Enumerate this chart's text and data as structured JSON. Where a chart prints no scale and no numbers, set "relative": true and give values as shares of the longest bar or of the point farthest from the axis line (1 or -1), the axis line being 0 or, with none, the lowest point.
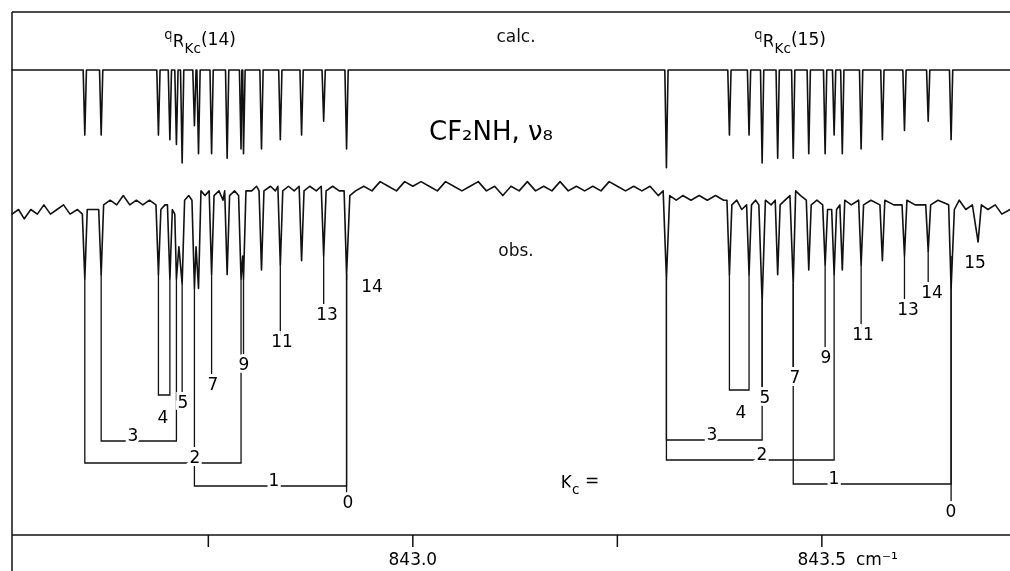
{
  "chart_data": {
    "type": "line",
    "relative": true,
    "title": "CF₂NH, ν₈",
    "xlabel": "cm⁻¹",
    "xlim": [
      842.51,
      843.73
    ],
    "xticks": [
      {
        "value": 842.75,
        "label": null
      },
      {
        "value": 843,
        "label": "843.0"
      },
      {
        "value": 843.25,
        "label": null
      },
      {
        "value": 843.5,
        "label": "843.5"
      }
    ],
    "tick_labels": "x",
    "series": [
      {
        "name": "calc.",
        "color": "#111111",
        "x": [
          842.51,
          842.597,
          842.599,
          842.601,
          842.617,
          842.619,
          842.621,
          842.687,
          842.689,
          842.691,
          842.701,
          842.703,
          842.705,
          842.709,
          842.711,
          842.713,
          842.716,
          842.718,
          842.72,
          842.731,
          842.733,
          842.735,
          842.736,
          842.738,
          842.74,
          842.752,
          842.754,
          842.756,
          842.771,
          842.773,
          842.775,
          842.788,
          842.79,
          842.791,
          842.792,
          842.793,
          842.795,
          842.813,
          842.815,
          842.817,
          842.836,
          842.838,
          842.84,
          842.862,
          842.864,
          842.866,
          842.889,
          842.891,
          842.893,
          842.917,
          842.919,
          842.921,
          843.308,
          843.31,
          843.312,
          843.385,
          843.387,
          843.389,
          843.409,
          843.411,
          843.413,
          843.425,
          843.427,
          843.429,
          843.444,
          843.446,
          843.448,
          843.463,
          843.465,
          843.467,
          843.482,
          843.484,
          843.486,
          843.502,
          843.504,
          843.506,
          843.513,
          843.515,
          843.517,
          843.523,
          843.525,
          843.527,
          843.546,
          843.548,
          843.55,
          843.572,
          843.574,
          843.576,
          843.599,
          843.601,
          843.603,
          843.628,
          843.63,
          843.632,
          843.656,
          843.658,
          843.66,
          843.73
        ],
        "values": [
          1,
          1,
          0.86,
          1,
          1,
          0.86,
          1,
          1,
          0.86,
          1,
          1,
          0.85,
          1,
          1,
          0.84,
          1,
          1,
          0.8,
          1,
          1,
          0.88,
          1,
          1,
          0.82,
          1,
          1,
          0.82,
          1,
          1,
          0.81,
          1,
          1,
          0.83,
          1,
          1,
          0.82,
          1,
          1,
          0.83,
          1,
          1,
          0.85,
          1,
          1,
          0.86,
          1,
          1,
          0.89,
          1,
          1,
          0.83,
          1,
          1,
          0.79,
          1,
          1,
          0.86,
          1,
          1,
          0.86,
          1,
          1,
          0.8,
          1,
          1,
          0.81,
          1,
          1,
          0.81,
          1,
          1,
          0.82,
          1,
          1,
          0.82,
          1,
          1,
          0.86,
          1,
          1,
          0.82,
          1,
          1,
          0.83,
          1,
          1,
          0.85,
          1,
          1,
          0.87,
          1,
          1,
          0.89,
          1,
          1,
          0.85,
          1,
          1
        ]
      },
      {
        "name": "obs.",
        "color": "#111111",
        "x": [
          842.51,
          842.518,
          842.525,
          842.533,
          842.541,
          842.549,
          842.557,
          842.565,
          842.573,
          842.581,
          842.59,
          842.596,
          842.599,
          842.602,
          842.61,
          842.616,
          842.619,
          842.622,
          842.63,
          842.638,
          842.646,
          842.654,
          842.662,
          842.67,
          842.678,
          842.686,
          842.689,
          842.692,
          842.697,
          842.7,
          842.703,
          842.706,
          842.709,
          842.711,
          842.714,
          842.718,
          842.721,
          842.726,
          842.73,
          842.733,
          842.735,
          842.738,
          842.741,
          842.746,
          842.751,
          842.754,
          842.757,
          842.763,
          842.768,
          842.77,
          842.773,
          842.776,
          842.782,
          842.787,
          842.79,
          842.792,
          842.793,
          842.796,
          842.803,
          842.809,
          842.812,
          842.815,
          842.818,
          842.826,
          842.832,
          842.835,
          842.838,
          842.841,
          842.848,
          842.855,
          842.861,
          842.864,
          842.867,
          842.874,
          842.882,
          842.888,
          842.891,
          842.894,
          842.902,
          842.91,
          842.916,
          842.919,
          842.923,
          842.93,
          842.94,
          842.95,
          842.96,
          842.97,
          842.98,
          842.99,
          843,
          843.01,
          843.02,
          843.03,
          843.04,
          843.05,
          843.06,
          843.07,
          843.08,
          843.09,
          843.1,
          843.11,
          843.12,
          843.13,
          843.14,
          843.15,
          843.16,
          843.17,
          843.18,
          843.19,
          843.2,
          843.21,
          843.22,
          843.23,
          843.24,
          843.25,
          843.26,
          843.27,
          843.28,
          843.29,
          843.3,
          843.306,
          843.31,
          843.314,
          843.322,
          843.33,
          843.34,
          843.35,
          843.36,
          843.37,
          843.38,
          843.384,
          843.387,
          843.39,
          843.396,
          843.402,
          843.408,
          843.411,
          843.414,
          843.419,
          843.423,
          843.427,
          843.431,
          843.438,
          843.443,
          843.446,
          843.449,
          843.455,
          843.461,
          843.465,
          843.468,
          843.474,
          843.481,
          843.484,
          843.487,
          843.494,
          843.501,
          843.504,
          843.507,
          843.512,
          843.515,
          843.518,
          843.522,
          843.525,
          843.528,
          843.536,
          843.545,
          843.548,
          843.551,
          843.56,
          843.571,
          843.574,
          843.577,
          843.588,
          843.598,
          843.601,
          843.604,
          843.614,
          843.627,
          843.63,
          843.633,
          843.642,
          843.655,
          843.658,
          843.662,
          843.668,
          843.676,
          843.684,
          843.691,
          843.695,
          843.703,
          843.712,
          843.72,
          843.73
        ],
        "values": [
          0.69,
          0.7,
          0.68,
          0.7,
          0.69,
          0.71,
          0.69,
          0.7,
          0.71,
          0.69,
          0.7,
          0.69,
          0.55,
          0.7,
          0.7,
          0.7,
          0.56,
          0.71,
          0.72,
          0.71,
          0.73,
          0.71,
          0.72,
          0.71,
          0.72,
          0.71,
          0.56,
          0.7,
          0.71,
          0.71,
          0.55,
          0.7,
          0.69,
          0.55,
          0.62,
          0.54,
          0.72,
          0.73,
          0.72,
          0.53,
          0.62,
          0.53,
          0.74,
          0.73,
          0.74,
          0.56,
          0.73,
          0.74,
          0.72,
          0.74,
          0.56,
          0.73,
          0.74,
          0.73,
          0.55,
          0.6,
          0.55,
          0.74,
          0.74,
          0.75,
          0.74,
          0.57,
          0.74,
          0.75,
          0.74,
          0.75,
          0.58,
          0.74,
          0.75,
          0.74,
          0.75,
          0.59,
          0.74,
          0.75,
          0.74,
          0.75,
          0.6,
          0.74,
          0.75,
          0.74,
          0.74,
          0.56,
          0.73,
          0.74,
          0.75,
          0.74,
          0.76,
          0.75,
          0.74,
          0.76,
          0.75,
          0.76,
          0.75,
          0.74,
          0.76,
          0.75,
          0.74,
          0.75,
          0.76,
          0.74,
          0.75,
          0.73,
          0.75,
          0.74,
          0.76,
          0.74,
          0.75,
          0.74,
          0.76,
          0.74,
          0.75,
          0.74,
          0.75,
          0.74,
          0.76,
          0.75,
          0.74,
          0.75,
          0.74,
          0.75,
          0.73,
          0.74,
          0.55,
          0.73,
          0.72,
          0.73,
          0.72,
          0.73,
          0.72,
          0.73,
          0.72,
          0.72,
          0.56,
          0.71,
          0.72,
          0.7,
          0.71,
          0.56,
          0.71,
          0.72,
          0.71,
          0.5,
          0.72,
          0.71,
          0.72,
          0.56,
          0.71,
          0.72,
          0.73,
          0.54,
          0.74,
          0.73,
          0.72,
          0.57,
          0.71,
          0.72,
          0.71,
          0.58,
          0.7,
          0.7,
          0.56,
          0.7,
          0.71,
          0.57,
          0.72,
          0.71,
          0.72,
          0.58,
          0.71,
          0.72,
          0.71,
          0.59,
          0.72,
          0.71,
          0.71,
          0.6,
          0.72,
          0.71,
          0.71,
          0.61,
          0.71,
          0.72,
          0.71,
          0.53,
          0.7,
          0.72,
          0.7,
          0.71,
          0.63,
          0.71,
          0.7,
          0.71,
          0.69,
          0.7
        ]
      }
    ],
    "annotations": [
      "$^{q}$R$_{Kc}$(14)",
      "$^{q}$R$_{Kc}$(15)",
      "4",
      "3",
      "2",
      "1",
      "0",
      "5",
      "7",
      "9",
      "11",
      "13",
      "14",
      "4",
      "3",
      "2",
      "1",
      "0",
      "5",
      "7",
      "9",
      "11",
      "13",
      "14",
      "15",
      "K$_{c}$ ="
    ]
  }
}
